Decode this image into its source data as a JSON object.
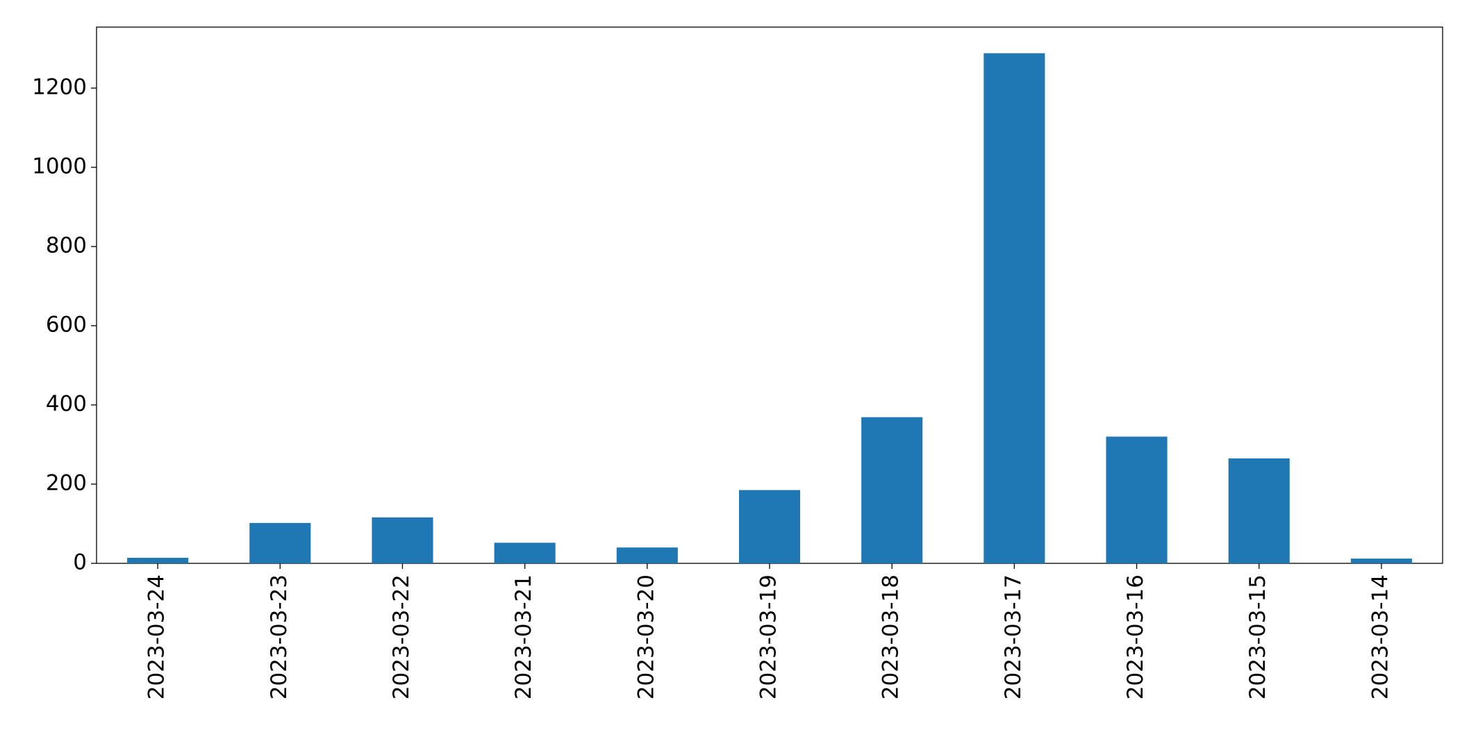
{
  "chart_data": {
    "type": "bar",
    "categories": [
      "2023-03-24",
      "2023-03-23",
      "2023-03-22",
      "2023-03-21",
      "2023-03-20",
      "2023-03-19",
      "2023-03-18",
      "2023-03-17",
      "2023-03-16",
      "2023-03-15",
      "2023-03-14"
    ],
    "values": [
      14,
      102,
      116,
      52,
      40,
      185,
      369,
      1288,
      320,
      265,
      12
    ],
    "color": "#1f77b4",
    "ylim": [
      0,
      1354
    ],
    "yticks": [
      0,
      200,
      400,
      600,
      800,
      1000,
      1200
    ],
    "grid": false
  }
}
